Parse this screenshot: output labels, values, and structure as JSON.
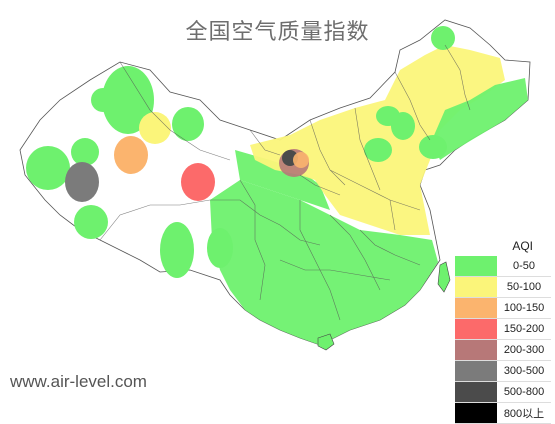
{
  "title": "全国空气质量指数",
  "watermark": "www.air-level.com",
  "legend": {
    "title": "AQI",
    "items": [
      {
        "label": "0-50",
        "color": "#6ef16e"
      },
      {
        "label": "50-100",
        "color": "#fbf57a"
      },
      {
        "label": "100-150",
        "color": "#fbb46e"
      },
      {
        "label": "150-200",
        "color": "#fc6a6a"
      },
      {
        "label": "200-300",
        "color": "#b77878"
      },
      {
        "label": "300-500",
        "color": "#7b7b7b"
      },
      {
        "label": "500-800",
        "color": "#4b4b4b"
      },
      {
        "label": "800以上",
        "color": "#000000"
      }
    ]
  }
}
